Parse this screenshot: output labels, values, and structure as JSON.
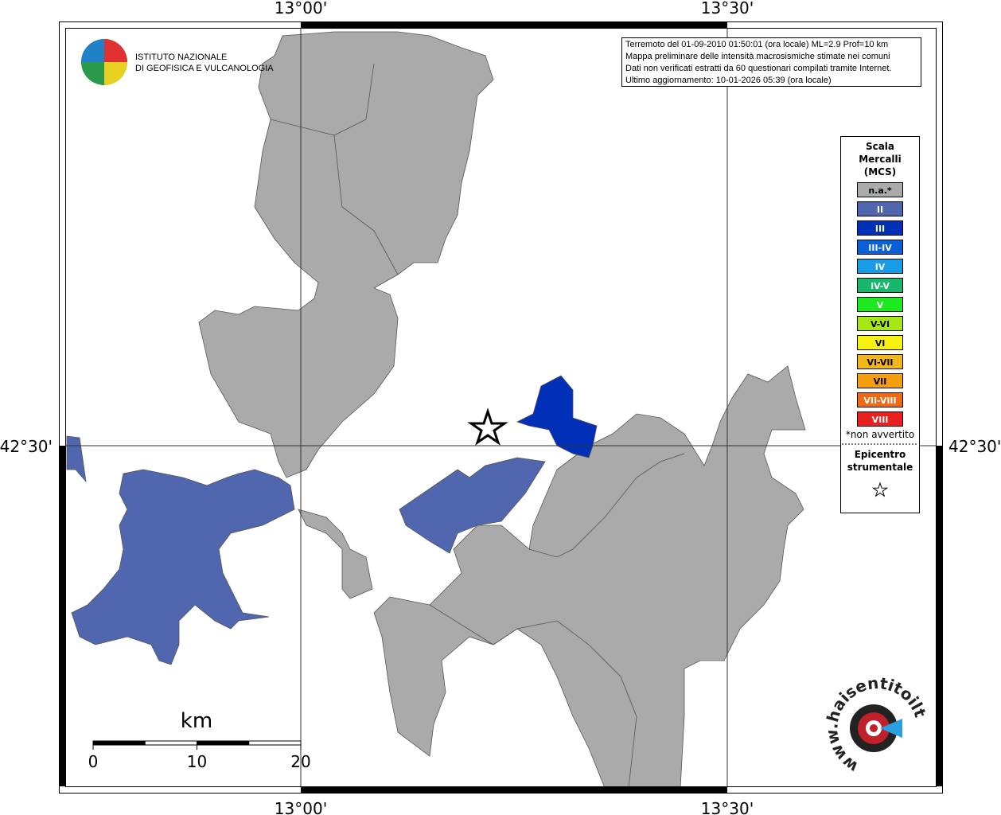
{
  "grid_labels": {
    "lon": [
      "13°00'",
      "13°30'"
    ],
    "lat": "42°30'"
  },
  "info": [
    "Terremoto del 01-09-2010 01:50:01 (ora locale) ML=2.9 Prof=10 km",
    "Mappa preliminare delle intensità macrosismiche stimate nei comuni",
    "Dati non verificati estratti da 60 questionari compilati tramite Internet.",
    "Ultimo aggiornamento: 10-01-2026 05:39 (ora locale)"
  ],
  "logo": [
    "ISTITUTO NAZIONALE",
    "DI GEOFISICA E VULCANOLOGIA"
  ],
  "legend": {
    "title": [
      "Scala",
      "Mercalli",
      "(MCS)"
    ],
    "items": [
      {
        "label": "n.a.*",
        "color": "#aaaaaa"
      },
      {
        "label": "II",
        "color": "#5066ae"
      },
      {
        "label": "III",
        "color": "#0030b8"
      },
      {
        "label": "III-IV",
        "color": "#0a60d6"
      },
      {
        "label": "IV",
        "color": "#1a9be6"
      },
      {
        "label": "IV-V",
        "color": "#18b76b"
      },
      {
        "label": "V",
        "color": "#1ee81e"
      },
      {
        "label": "V-VI",
        "color": "#a6e815"
      },
      {
        "label": "VI",
        "color": "#f7f20f"
      },
      {
        "label": "VI-VII",
        "color": "#f2b51a"
      },
      {
        "label": "VII",
        "color": "#f59f10"
      },
      {
        "label": "VII-VIII",
        "color": "#f06a16"
      },
      {
        "label": "VIII",
        "color": "#e82020"
      }
    ],
    "note": "*non avvertito",
    "epicenter": [
      "Epicentro",
      "strumentale"
    ]
  },
  "scale_bar": {
    "unit": "km",
    "ticks": [
      0,
      10,
      20
    ]
  },
  "watermark": "www.haisentitoilterremoto.it"
}
